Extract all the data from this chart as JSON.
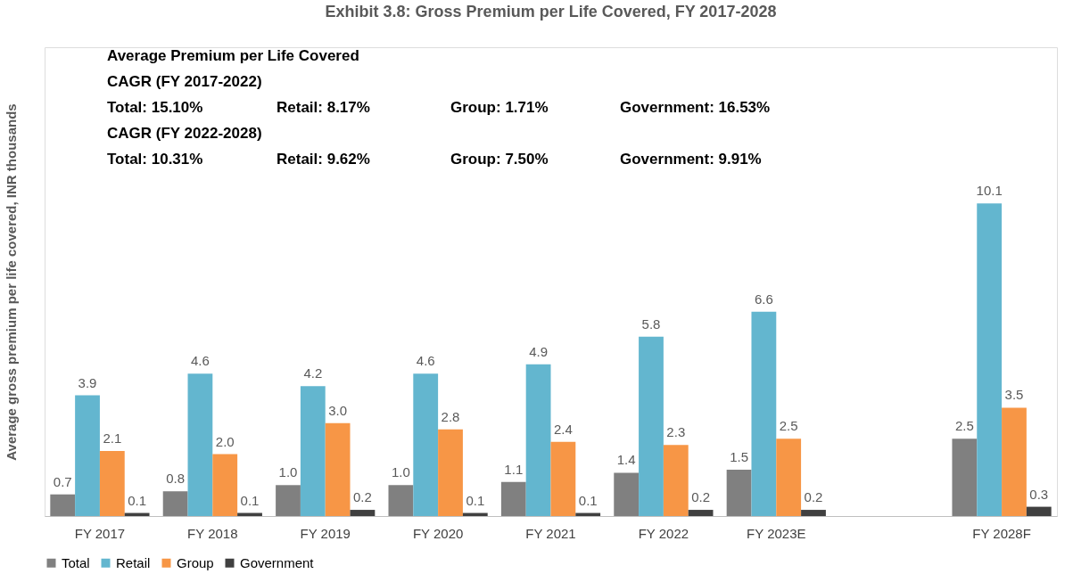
{
  "chart_data": {
    "type": "bar",
    "title": "Exhibit 3.8: Gross Premium per Life Covered, FY 2017-2028",
    "ylabel": "Average gross premium per life covered, INR thousands",
    "categories": [
      "FY 2017",
      "FY 2018",
      "FY 2019",
      "FY 2020",
      "FY 2021",
      "FY 2022",
      "FY 2023E",
      null,
      "FY 2028F"
    ],
    "series": [
      {
        "name": "Total",
        "color": "#808080",
        "values": [
          0.7,
          0.8,
          1.0,
          1.0,
          1.1,
          1.4,
          1.5,
          null,
          2.5
        ],
        "value_labels": [
          "0.7",
          "0.8",
          "1.0",
          "1.0",
          "1.1",
          "1.4",
          "1.5",
          null,
          "2.5"
        ]
      },
      {
        "name": "Retail",
        "color": "#63b6cf",
        "values": [
          3.9,
          4.6,
          4.2,
          4.6,
          4.9,
          5.8,
          6.6,
          null,
          10.1
        ],
        "value_labels": [
          "3.9",
          "4.6",
          "4.2",
          "4.6",
          "4.9",
          "5.8",
          "6.6",
          null,
          "10.1"
        ]
      },
      {
        "name": "Group",
        "color": "#f79646",
        "values": [
          2.1,
          2.0,
          3.0,
          2.8,
          2.4,
          2.3,
          2.5,
          null,
          3.5
        ],
        "value_labels": [
          "2.1",
          "2.0",
          "3.0",
          "2.8",
          "2.4",
          "2.3",
          "2.5",
          null,
          "3.5"
        ]
      },
      {
        "name": "Government",
        "color": "#404040",
        "values": [
          0.1,
          0.1,
          0.2,
          0.1,
          0.1,
          0.2,
          0.2,
          null,
          0.3
        ],
        "value_labels": [
          "0.1",
          "0.1",
          "0.2",
          "0.1",
          "0.1",
          "0.2",
          "0.2",
          null,
          "0.3"
        ]
      }
    ],
    "annotations": [
      "Average Premium per Life Covered",
      "CAGR (FY 2017-2022)",
      "Total: 15.10%",
      "Retail: 8.17%",
      "Group: 1.71%",
      "Government: 16.53%",
      "CAGR (FY 2022-2028)",
      "Total: 10.31%",
      "Retail: 9.62%",
      "Group: 7.50%",
      "Government: 9.91%"
    ],
    "legend": "bottom",
    "grid": false
  }
}
